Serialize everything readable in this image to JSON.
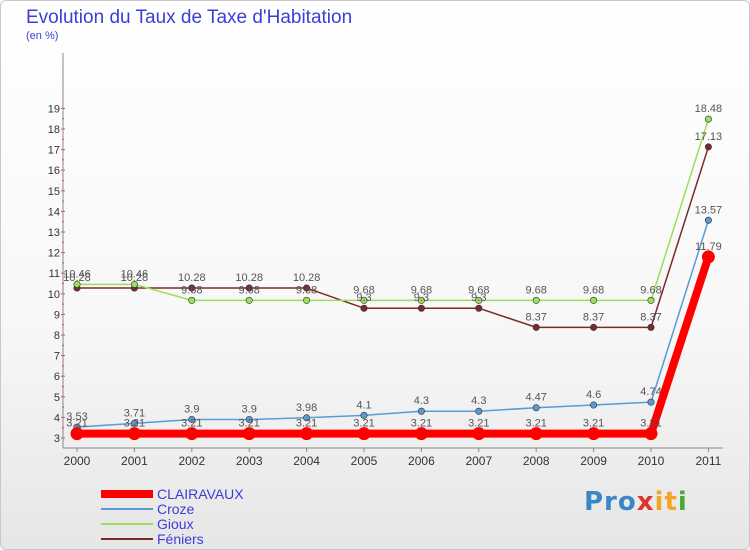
{
  "title": "Evolution du Taux de Taxe d'Habitation",
  "subtitle": "(en %)",
  "logo": {
    "part1": "Pro",
    "part2": "x",
    "part3": "it",
    "part4": "i"
  },
  "chart_data": {
    "type": "line",
    "title": "Evolution du Taux de Taxe d'Habitation",
    "ylabel": "(en %)",
    "x": [
      "2000",
      "2001",
      "2002",
      "2003",
      "2004",
      "2005",
      "2006",
      "2007",
      "2008",
      "2009",
      "2010",
      "2011"
    ],
    "ylim": [
      3,
      19
    ],
    "yticks": [
      3,
      4,
      5,
      6,
      7,
      8,
      9,
      10,
      11,
      12,
      13,
      14,
      15,
      16,
      17,
      18,
      19
    ],
    "grid": false,
    "legend_position": "bottom-left",
    "series": [
      {
        "name": "CLAIRAVAUX",
        "color": "#ff0000",
        "width": 8,
        "values": [
          3.21,
          3.21,
          3.21,
          3.21,
          3.21,
          3.21,
          3.21,
          3.21,
          3.21,
          3.21,
          3.21,
          11.79
        ],
        "labels": [
          "3.21",
          "3.21",
          "3.21",
          "3.21",
          "3.21",
          "3.21",
          "3.21",
          "3.21",
          "3.21",
          "3.21",
          "3.21",
          "11.79"
        ]
      },
      {
        "name": "Croze",
        "color": "#5a9bd4",
        "width": 1.5,
        "values": [
          3.53,
          3.71,
          3.9,
          3.9,
          3.98,
          4.1,
          4.3,
          4.3,
          4.47,
          4.6,
          4.74,
          13.57
        ],
        "labels": [
          "3.53",
          "3.71",
          "3.9",
          "3.9",
          "3.98",
          "4.1",
          "4.3",
          "4.3",
          "4.47",
          "4.6",
          "4.74",
          "13.57"
        ]
      },
      {
        "name": "Gioux",
        "color": "#99e05a",
        "width": 1.5,
        "values": [
          10.46,
          10.46,
          9.68,
          9.68,
          9.68,
          9.68,
          9.68,
          9.68,
          9.68,
          9.68,
          9.68,
          18.48
        ],
        "labels": [
          "10.46",
          "10.46",
          "9.68",
          "9.68",
          "9.68",
          "9.68",
          "9.68",
          "9.68",
          "9.68",
          "9.68",
          "9.68",
          "18.48"
        ]
      },
      {
        "name": "Féniers",
        "color": "#7a2a2a",
        "width": 1.5,
        "values": [
          10.28,
          10.28,
          10.28,
          10.28,
          10.28,
          9.3,
          9.3,
          9.3,
          8.37,
          8.37,
          8.37,
          17.13
        ],
        "labels": [
          "10.28",
          "10.28",
          "10.28",
          "10.28",
          "10.28",
          "9.3",
          "9.3",
          "9.3",
          "8.37",
          "8.37",
          "8.37",
          "17.13"
        ]
      }
    ]
  },
  "colors": {
    "title": "#3d3dd6",
    "axis": "#888888",
    "tick_label": "#333333",
    "data_label": "#555555",
    "ytick_marker": "#e0504a"
  }
}
